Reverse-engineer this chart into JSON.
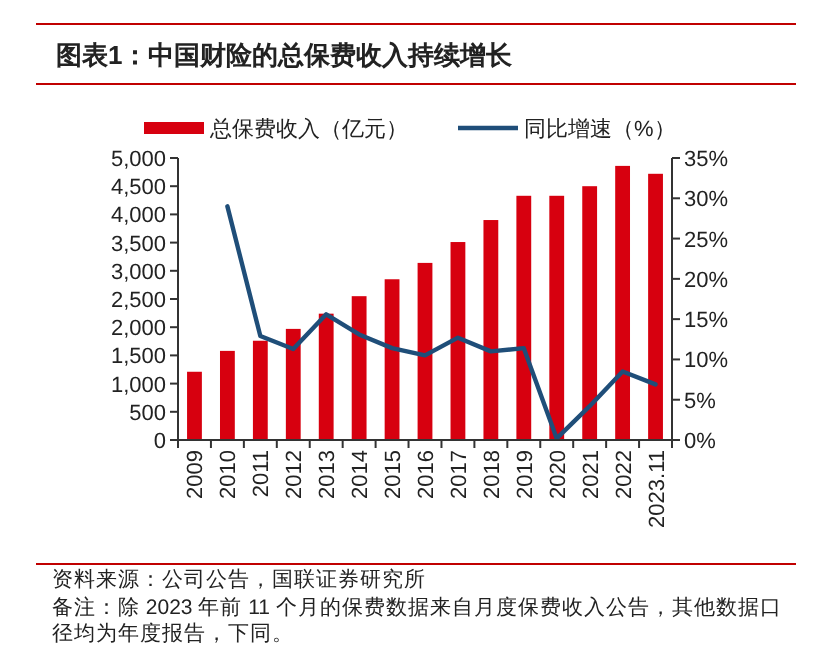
{
  "chart_data": {
    "type": "bar",
    "title": "图表1：中国财险的总保费收入持续增长",
    "categories": [
      "2009",
      "2010",
      "2011",
      "2012",
      "2013",
      "2014",
      "2015",
      "2016",
      "2017",
      "2018",
      "2019",
      "2020",
      "2021",
      "2022",
      "2023.11"
    ],
    "series": [
      {
        "name": "总保费收入（亿元）",
        "color": "#d7000f",
        "values": [
          1210,
          1580,
          1760,
          1970,
          2240,
          2550,
          2850,
          3140,
          3510,
          3900,
          4330,
          4330,
          4500,
          4860,
          4720
        ]
      },
      {
        "name": "同比增速（%）",
        "type": "line",
        "axis": "y2",
        "color": "#1f4e79",
        "values": [
          null,
          29.0,
          12.9,
          11.3,
          15.6,
          13.1,
          11.4,
          10.5,
          12.7,
          11.0,
          11.4,
          0.2,
          4.2,
          8.5,
          6.9
        ]
      }
    ],
    "ylim": [
      0,
      5000
    ],
    "yticks": [
      0,
      500,
      {
        "value": 1000,
        "label": "1,000"
      },
      {
        "value": 1500,
        "label": "1,500"
      },
      {
        "value": 2000,
        "label": "2,000"
      },
      {
        "value": 2500,
        "label": "2,500"
      },
      {
        "value": 3000,
        "label": "3,000"
      },
      {
        "value": 3500,
        "label": "3,500"
      },
      {
        "value": 4000,
        "label": "4,000"
      },
      {
        "value": 4500,
        "label": "4,500"
      },
      {
        "value": 5000,
        "label": "5,000"
      }
    ],
    "y2lim": [
      0,
      35
    ],
    "y2ticks": [
      {
        "value": 0,
        "label": "0%"
      },
      {
        "value": 5,
        "label": "5%"
      },
      {
        "value": 10,
        "label": "10%"
      },
      {
        "value": 15,
        "label": "15%"
      },
      {
        "value": 20,
        "label": "20%"
      },
      {
        "value": 25,
        "label": "25%"
      },
      {
        "value": 30,
        "label": "30%"
      },
      {
        "value": 35,
        "label": "35%"
      }
    ],
    "legend": "top",
    "grid": false,
    "annotations": [
      "资料来源：公司公告，国联证券研究所",
      "备注：除 2023 年前 11 个月的保费数据来自月度保费收入公告，其他数据口径均为年度报告，下同。"
    ]
  }
}
